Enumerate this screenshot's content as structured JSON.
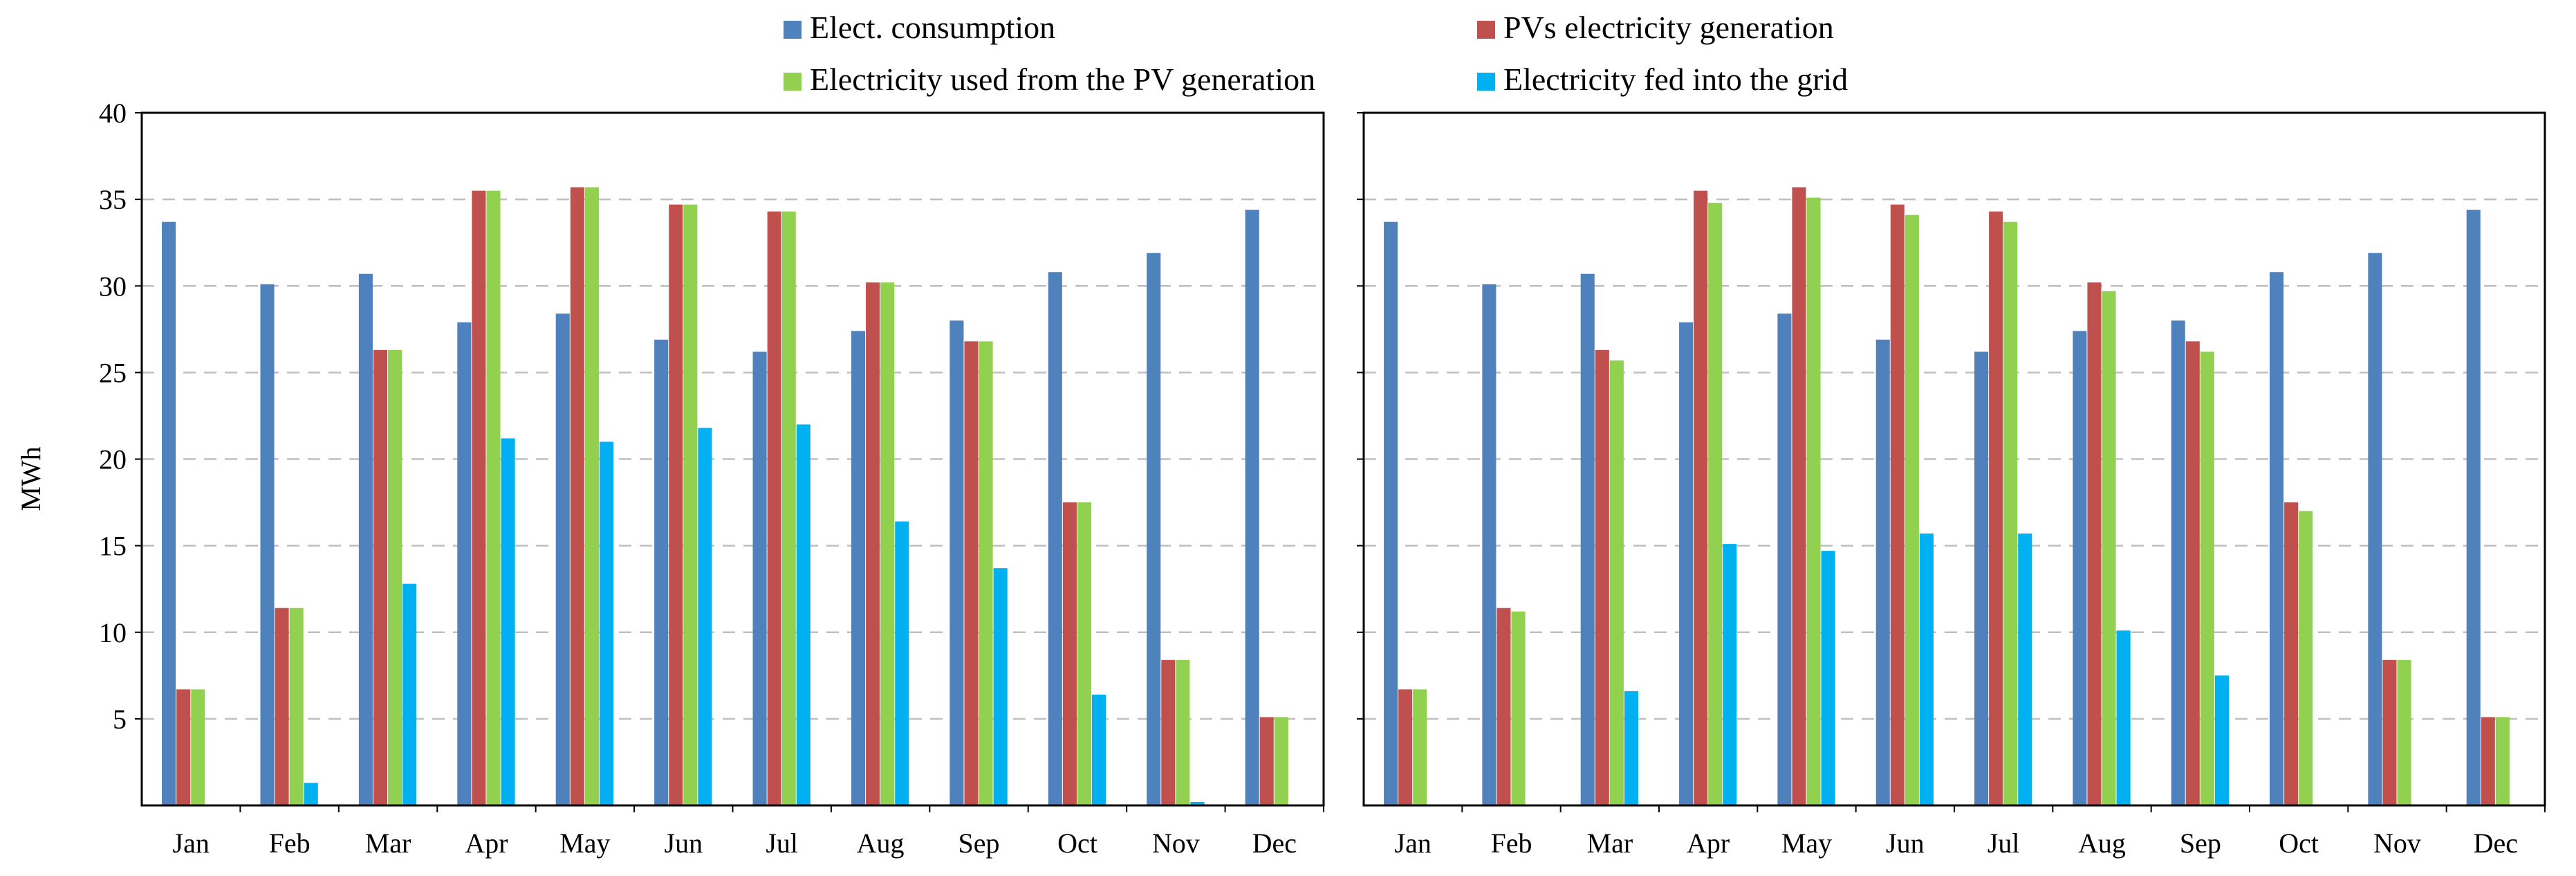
{
  "legend": [
    {
      "name": "Elect. consumption",
      "color": "#4F81BD"
    },
    {
      "name": "PVs electricity generation",
      "color": "#C0504D"
    },
    {
      "name": "Electricity used from the PV generation",
      "color": "#92D050"
    },
    {
      "name": "Electricity fed into the grid",
      "color": "#00B0F0"
    }
  ],
  "ylabel": "MWh",
  "yticks": [
    5,
    10,
    15,
    20,
    25,
    30,
    35,
    40
  ],
  "chart_data": [
    {
      "type": "bar",
      "title": "",
      "xlabel": "",
      "ylabel": "MWh",
      "ylim": [
        0,
        40
      ],
      "grid": true,
      "categories": [
        "Jan",
        "Feb",
        "Mar",
        "Apr",
        "May",
        "Jun",
        "Jul",
        "Aug",
        "Sep",
        "Oct",
        "Nov",
        "Dec"
      ],
      "series": [
        {
          "name": "Elect. consumption",
          "color": "#4F81BD",
          "values": [
            33.7,
            30.1,
            30.7,
            27.9,
            28.4,
            26.9,
            26.2,
            27.4,
            28.0,
            30.8,
            31.9,
            34.4
          ]
        },
        {
          "name": "PVs electricity generation",
          "color": "#C0504D",
          "values": [
            6.7,
            11.4,
            26.3,
            35.5,
            35.7,
            34.7,
            34.3,
            30.2,
            26.8,
            17.5,
            8.4,
            5.1
          ]
        },
        {
          "name": "Electricity used from the PV generation",
          "color": "#92D050",
          "values": [
            6.7,
            11.4,
            26.3,
            35.5,
            35.7,
            34.7,
            34.3,
            30.2,
            26.8,
            17.5,
            8.4,
            5.1
          ]
        },
        {
          "name": "Electricity fed into the grid",
          "color": "#00B0F0",
          "values": [
            0,
            1.3,
            12.8,
            21.2,
            21.0,
            21.8,
            22.0,
            16.4,
            13.7,
            6.4,
            0.2,
            0
          ]
        }
      ]
    },
    {
      "type": "bar",
      "title": "",
      "xlabel": "",
      "ylabel": "",
      "ylim": [
        0,
        40
      ],
      "grid": true,
      "categories": [
        "Jan",
        "Feb",
        "Mar",
        "Apr",
        "May",
        "Jun",
        "Jul",
        "Aug",
        "Sep",
        "Oct",
        "Nov",
        "Dec"
      ],
      "series": [
        {
          "name": "Elect. consumption",
          "color": "#4F81BD",
          "values": [
            33.7,
            30.1,
            30.7,
            27.9,
            28.4,
            26.9,
            26.2,
            27.4,
            28.0,
            30.8,
            31.9,
            34.4
          ]
        },
        {
          "name": "PVs electricity generation",
          "color": "#C0504D",
          "values": [
            6.7,
            11.4,
            26.3,
            35.5,
            35.7,
            34.7,
            34.3,
            30.2,
            26.8,
            17.5,
            8.4,
            5.1
          ]
        },
        {
          "name": "Electricity used from the PV generation",
          "color": "#92D050",
          "values": [
            6.7,
            11.2,
            25.7,
            34.8,
            35.1,
            34.1,
            33.7,
            29.7,
            26.2,
            17.0,
            8.4,
            5.1
          ]
        },
        {
          "name": "Electricity fed into the grid",
          "color": "#00B0F0",
          "values": [
            0,
            0,
            6.6,
            15.1,
            14.7,
            15.7,
            15.7,
            10.1,
            7.5,
            0,
            0,
            0
          ]
        }
      ]
    }
  ]
}
